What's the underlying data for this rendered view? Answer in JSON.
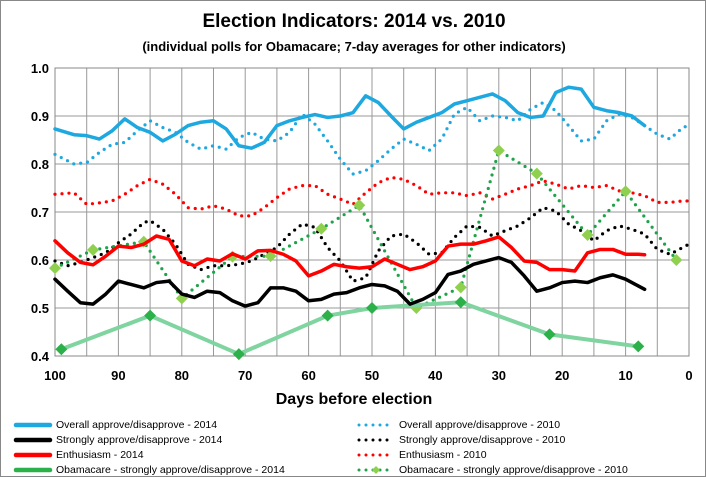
{
  "chart_data": {
    "type": "line",
    "title": "Election Indicators: 2014 vs. 2010",
    "subtitle": "(individual polls for Obamacare; 7-day averages for other indicators)",
    "xlabel": "Days before election",
    "ylabel": "",
    "xlim": [
      100,
      0
    ],
    "x_reversed": true,
    "ylim": [
      0.4,
      1.0
    ],
    "xticks": [
      "100",
      "90",
      "80",
      "70",
      "60",
      "50",
      "40",
      "30",
      "20",
      "10",
      "0"
    ],
    "yticks": [
      "0.4",
      "0.5",
      "0.6",
      "0.7",
      "0.8",
      "0.9",
      "1.0"
    ],
    "grid": true,
    "legend_placement": "bottom",
    "series": [
      {
        "name": "Overall approve/disapprove - 2014",
        "color": "#1ea8e0",
        "style": "solid",
        "x": [
          100,
          97,
          95,
          93,
          91,
          89,
          87,
          85,
          83,
          81,
          79,
          77,
          75,
          73,
          71,
          69,
          67,
          65,
          63,
          61,
          59,
          57,
          55,
          53,
          51,
          49,
          47,
          45,
          43,
          41,
          39,
          37,
          35,
          33,
          31,
          29,
          27,
          25,
          23,
          21,
          19,
          17,
          15,
          13,
          11,
          9,
          7
        ],
        "y": [
          0.873,
          0.861,
          0.859,
          0.852,
          0.869,
          0.894,
          0.876,
          0.866,
          0.848,
          0.862,
          0.88,
          0.887,
          0.89,
          0.873,
          0.838,
          0.833,
          0.845,
          0.88,
          0.89,
          0.897,
          0.903,
          0.897,
          0.9,
          0.907,
          0.942,
          0.928,
          0.9,
          0.873,
          0.887,
          0.897,
          0.907,
          0.925,
          0.932,
          0.939,
          0.946,
          0.932,
          0.907,
          0.897,
          0.9,
          0.949,
          0.96,
          0.956,
          0.918,
          0.911,
          0.907,
          0.9,
          0.88
        ]
      },
      {
        "name": "Strongly approve/disapprove - 2014",
        "color": "#000000",
        "style": "solid",
        "x": [
          100,
          98,
          96,
          94,
          92,
          90,
          88,
          86,
          84,
          82,
          80,
          78,
          76,
          74,
          72,
          70,
          68,
          66,
          64,
          62,
          60,
          58,
          56,
          54,
          52,
          50,
          48,
          46,
          44,
          42,
          40,
          38,
          36,
          34,
          32,
          30,
          28,
          26,
          24,
          22,
          20,
          18,
          16,
          14,
          12,
          10,
          8,
          7
        ],
        "y": [
          0.56,
          0.535,
          0.511,
          0.508,
          0.529,
          0.556,
          0.549,
          0.542,
          0.553,
          0.556,
          0.529,
          0.522,
          0.535,
          0.532,
          0.515,
          0.504,
          0.511,
          0.542,
          0.542,
          0.535,
          0.515,
          0.518,
          0.529,
          0.532,
          0.542,
          0.549,
          0.546,
          0.535,
          0.508,
          0.518,
          0.532,
          0.57,
          0.577,
          0.591,
          0.598,
          0.605,
          0.595,
          0.567,
          0.535,
          0.542,
          0.553,
          0.556,
          0.553,
          0.563,
          0.569,
          0.56,
          0.546,
          0.539
        ]
      },
      {
        "name": "Enthusiasm - 2014",
        "color": "#ff0000",
        "style": "solid",
        "x": [
          100,
          98,
          96,
          94,
          92,
          90,
          88,
          86,
          84,
          82,
          80,
          78,
          76,
          74,
          72,
          70,
          68,
          66,
          64,
          62,
          60,
          58,
          56,
          54,
          52,
          50,
          48,
          46,
          44,
          42,
          40,
          38,
          36,
          34,
          32,
          30,
          28,
          26,
          24,
          22,
          20,
          18,
          16,
          14,
          12,
          10,
          8,
          7
        ],
        "y": [
          0.64,
          0.615,
          0.595,
          0.59,
          0.608,
          0.629,
          0.626,
          0.633,
          0.65,
          0.643,
          0.598,
          0.588,
          0.602,
          0.598,
          0.613,
          0.602,
          0.619,
          0.62,
          0.612,
          0.598,
          0.567,
          0.577,
          0.591,
          0.586,
          0.583,
          0.586,
          0.602,
          0.591,
          0.58,
          0.586,
          0.598,
          0.629,
          0.633,
          0.633,
          0.64,
          0.648,
          0.626,
          0.598,
          0.595,
          0.58,
          0.58,
          0.577,
          0.615,
          0.622,
          0.622,
          0.612,
          0.612,
          0.611
        ]
      },
      {
        "name": "Obamacare - strongly approve/disapprove - 2014",
        "color": "#7fd4a0",
        "marker_color": "#2bb04a",
        "style": "solid-markers",
        "x": [
          99,
          85,
          71,
          57,
          50,
          36,
          22,
          8
        ],
        "y": [
          0.414,
          0.484,
          0.404,
          0.484,
          0.5,
          0.512,
          0.445,
          0.42
        ]
      },
      {
        "name": "Overall approve/disapprove - 2010",
        "color": "#1ea8e0",
        "style": "dotted",
        "x": [
          100,
          97,
          95,
          93,
          91,
          89,
          87,
          85,
          83,
          81,
          79,
          77,
          75,
          73,
          71,
          69,
          67,
          65,
          63,
          61,
          59,
          57,
          55,
          53,
          51,
          49,
          47,
          45,
          43,
          41,
          39,
          37,
          35,
          33,
          31,
          29,
          27,
          25,
          23,
          21,
          19,
          17,
          15,
          13,
          11,
          9,
          7,
          5,
          3,
          1,
          0
        ],
        "y": [
          0.82,
          0.8,
          0.803,
          0.824,
          0.841,
          0.845,
          0.869,
          0.89,
          0.876,
          0.866,
          0.845,
          0.831,
          0.838,
          0.831,
          0.855,
          0.866,
          0.852,
          0.848,
          0.866,
          0.904,
          0.883,
          0.848,
          0.81,
          0.779,
          0.786,
          0.807,
          0.831,
          0.852,
          0.841,
          0.828,
          0.852,
          0.904,
          0.918,
          0.89,
          0.9,
          0.897,
          0.89,
          0.914,
          0.928,
          0.911,
          0.88,
          0.848,
          0.852,
          0.89,
          0.904,
          0.897,
          0.88,
          0.862,
          0.852,
          0.876,
          0.88
        ]
      },
      {
        "name": "Strongly approve/disapprove - 2010",
        "color": "#000000",
        "style": "dotted",
        "x": [
          100,
          98,
          96,
          94,
          92,
          90,
          88,
          86,
          85,
          83,
          81,
          79,
          77,
          75,
          73,
          71,
          69,
          67,
          65,
          63,
          61,
          59,
          57,
          55,
          53,
          51,
          49,
          47,
          45,
          43,
          41,
          39,
          37,
          35,
          33,
          31,
          29,
          27,
          25,
          23,
          21,
          19,
          17,
          15,
          13,
          11,
          9,
          7,
          5,
          3,
          1,
          0
        ],
        "y": [
          0.598,
          0.588,
          0.595,
          0.605,
          0.615,
          0.636,
          0.654,
          0.678,
          0.682,
          0.664,
          0.633,
          0.591,
          0.58,
          0.588,
          0.588,
          0.591,
          0.598,
          0.612,
          0.626,
          0.654,
          0.675,
          0.668,
          0.626,
          0.598,
          0.556,
          0.563,
          0.619,
          0.65,
          0.654,
          0.636,
          0.612,
          0.615,
          0.647,
          0.671,
          0.668,
          0.65,
          0.661,
          0.671,
          0.688,
          0.709,
          0.702,
          0.675,
          0.661,
          0.64,
          0.661,
          0.671,
          0.664,
          0.654,
          0.622,
          0.612,
          0.626,
          0.633
        ]
      },
      {
        "name": "Enthusiasm - 2010",
        "color": "#ff0000",
        "style": "dotted",
        "x": [
          100,
          97,
          95,
          93,
          91,
          89,
          87,
          85,
          83,
          81,
          79,
          77,
          75,
          73,
          71,
          69,
          67,
          65,
          63,
          61,
          59,
          57,
          55,
          53,
          51,
          49,
          47,
          45,
          43,
          41,
          39,
          37,
          35,
          33,
          31,
          29,
          27,
          25,
          23,
          21,
          19,
          17,
          15,
          13,
          11,
          9,
          7,
          5,
          3,
          1,
          0
        ],
        "y": [
          0.737,
          0.74,
          0.716,
          0.719,
          0.723,
          0.737,
          0.755,
          0.768,
          0.758,
          0.737,
          0.709,
          0.706,
          0.713,
          0.706,
          0.692,
          0.692,
          0.709,
          0.73,
          0.748,
          0.755,
          0.755,
          0.737,
          0.727,
          0.716,
          0.74,
          0.761,
          0.772,
          0.768,
          0.755,
          0.737,
          0.74,
          0.74,
          0.734,
          0.74,
          0.727,
          0.737,
          0.748,
          0.755,
          0.765,
          0.758,
          0.748,
          0.755,
          0.751,
          0.755,
          0.744,
          0.74,
          0.734,
          0.72,
          0.72,
          0.723,
          0.723
        ]
      },
      {
        "name": "Obamacare - strongly approve/disapprove - 2010",
        "color": "#1fa34a",
        "marker_color": "#8fd14f",
        "style": "dotted-markers",
        "x": [
          100,
          94,
          86,
          80,
          72,
          66,
          58,
          52,
          43,
          36,
          30,
          24,
          16,
          10,
          2
        ],
        "y": [
          0.583,
          0.621,
          0.638,
          0.52,
          0.607,
          0.608,
          0.665,
          0.714,
          0.5,
          0.543,
          0.828,
          0.78,
          0.652,
          0.743,
          0.6
        ]
      }
    ]
  }
}
